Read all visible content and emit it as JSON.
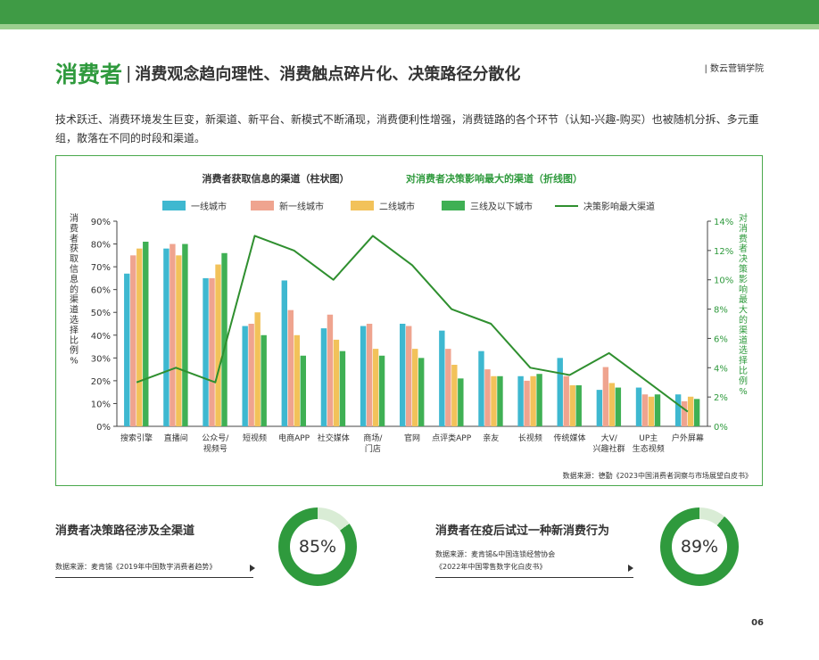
{
  "header": {
    "keyword": "消费者",
    "separator": "|",
    "subtitle": "消费观念趋向理性、消费触点碎片化、决策路径分散化",
    "brand": "| 数云营销学院"
  },
  "intro": "技术跃迁、消费环境发生巨变，新渠道、新平台、新模式不断涌现，消费便利性增强，消费链路的各个环节（认知-兴趣-购买）也被随机分拆、多元重组，散落在不同的时段和渠道。",
  "colors": {
    "tier1": "#3eb8d0",
    "newtier1": "#efa48f",
    "tier2": "#f2c25a",
    "tier3": "#3fb054",
    "line": "#2f8f2f",
    "accent": "#2f9a3d"
  },
  "chart_data": {
    "type": "bar",
    "title": "消费者获取信息的渠道（柱状图）",
    "title2": "对消费者决策影响最大的渠道（折线图）",
    "ylabel": "消费者获取信息的渠道选择比例%",
    "y2label": "对消费者决策影响最大的渠道选择比例%",
    "ylim": [
      0,
      90
    ],
    "y2lim": [
      0,
      14
    ],
    "yticks": [
      "0%",
      "10%",
      "20%",
      "30%",
      "40%",
      "50%",
      "60%",
      "70%",
      "80%",
      "90%"
    ],
    "y2ticks": [
      "0%",
      "2%",
      "4%",
      "6%",
      "8%",
      "10%",
      "12%",
      "14%"
    ],
    "categories": [
      "搜索引擎",
      "直播间",
      "公众号/\n视频号",
      "短视频",
      "电商APP",
      "社交媒体",
      "商场/\n门店",
      "官网",
      "点评类APP",
      "亲友",
      "长视频",
      "传统媒体",
      "大V/\n兴趣社群",
      "UP主\n生态视频",
      "户外屏幕"
    ],
    "series": [
      {
        "name": "一线城市",
        "values": [
          67,
          78,
          65,
          44,
          64,
          43,
          44,
          45,
          42,
          33,
          22,
          30,
          16,
          17,
          14
        ]
      },
      {
        "name": "新一线城市",
        "values": [
          75,
          80,
          65,
          45,
          51,
          49,
          45,
          44,
          34,
          25,
          20,
          22,
          26,
          14,
          11
        ]
      },
      {
        "name": "二线城市",
        "values": [
          78,
          75,
          71,
          50,
          40,
          38,
          34,
          34,
          27,
          22,
          22,
          18,
          19,
          13,
          13
        ]
      },
      {
        "name": "三线及以下城市",
        "values": [
          81,
          80,
          76,
          40,
          31,
          33,
          31,
          30,
          21,
          22,
          23,
          18,
          17,
          14,
          12
        ]
      }
    ],
    "line": {
      "name": "决策影响最大渠道",
      "values": [
        3,
        4,
        3,
        13,
        12,
        10,
        13,
        11,
        8,
        7,
        4,
        3.5,
        5,
        3,
        1
      ]
    },
    "source": "数据来源：德勤《2023中国消费者洞察与市场展望白皮书》"
  },
  "stats": [
    {
      "title": "消费者决策路径涉及全渠道",
      "value": "85%",
      "fraction": 0.85,
      "source_lines": [
        "数据来源：麦肯锡《2019年中国数字消费者趋势》"
      ]
    },
    {
      "title": "消费者在疫后试过一种新消费行为",
      "value": "89%",
      "fraction": 0.89,
      "source_lines": [
        "数据来源：麦肯锡&中国连锁经营协会",
        "《2022年中国零售数字化白皮书》"
      ]
    }
  ],
  "page_number": "06"
}
